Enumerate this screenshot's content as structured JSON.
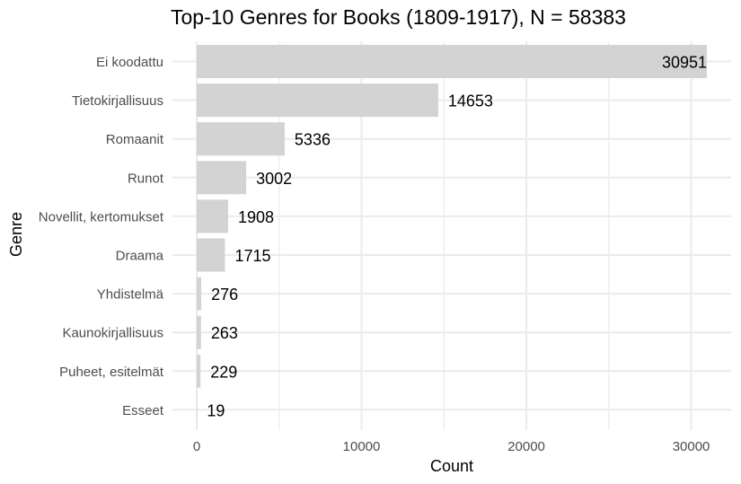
{
  "chart_data": {
    "type": "bar",
    "orientation": "horizontal",
    "title": "Top-10 Genres for Books (1809-1917), N = 58383",
    "xlabel": "Count",
    "ylabel": "Genre",
    "categories": [
      "Ei koodattu",
      "Tietokirjallisuus",
      "Romaanit",
      "Runot",
      "Novellit, kertomukset",
      "Draama",
      "Yhdistelmä",
      "Kaunokirjallisuus",
      "Puheet, esitelmät",
      "Esseet"
    ],
    "values": [
      30951,
      14653,
      5336,
      3002,
      1908,
      1715,
      276,
      263,
      229,
      19
    ],
    "xlim": [
      0,
      31000
    ],
    "x_ticks": [
      0,
      10000,
      20000,
      30000
    ],
    "x_tick_labels": [
      "0",
      "10000",
      "20000",
      "30000"
    ],
    "grid": true,
    "legend": "none",
    "bar_color": "#d3d3d3",
    "grid_color": "#ebebeb"
  }
}
